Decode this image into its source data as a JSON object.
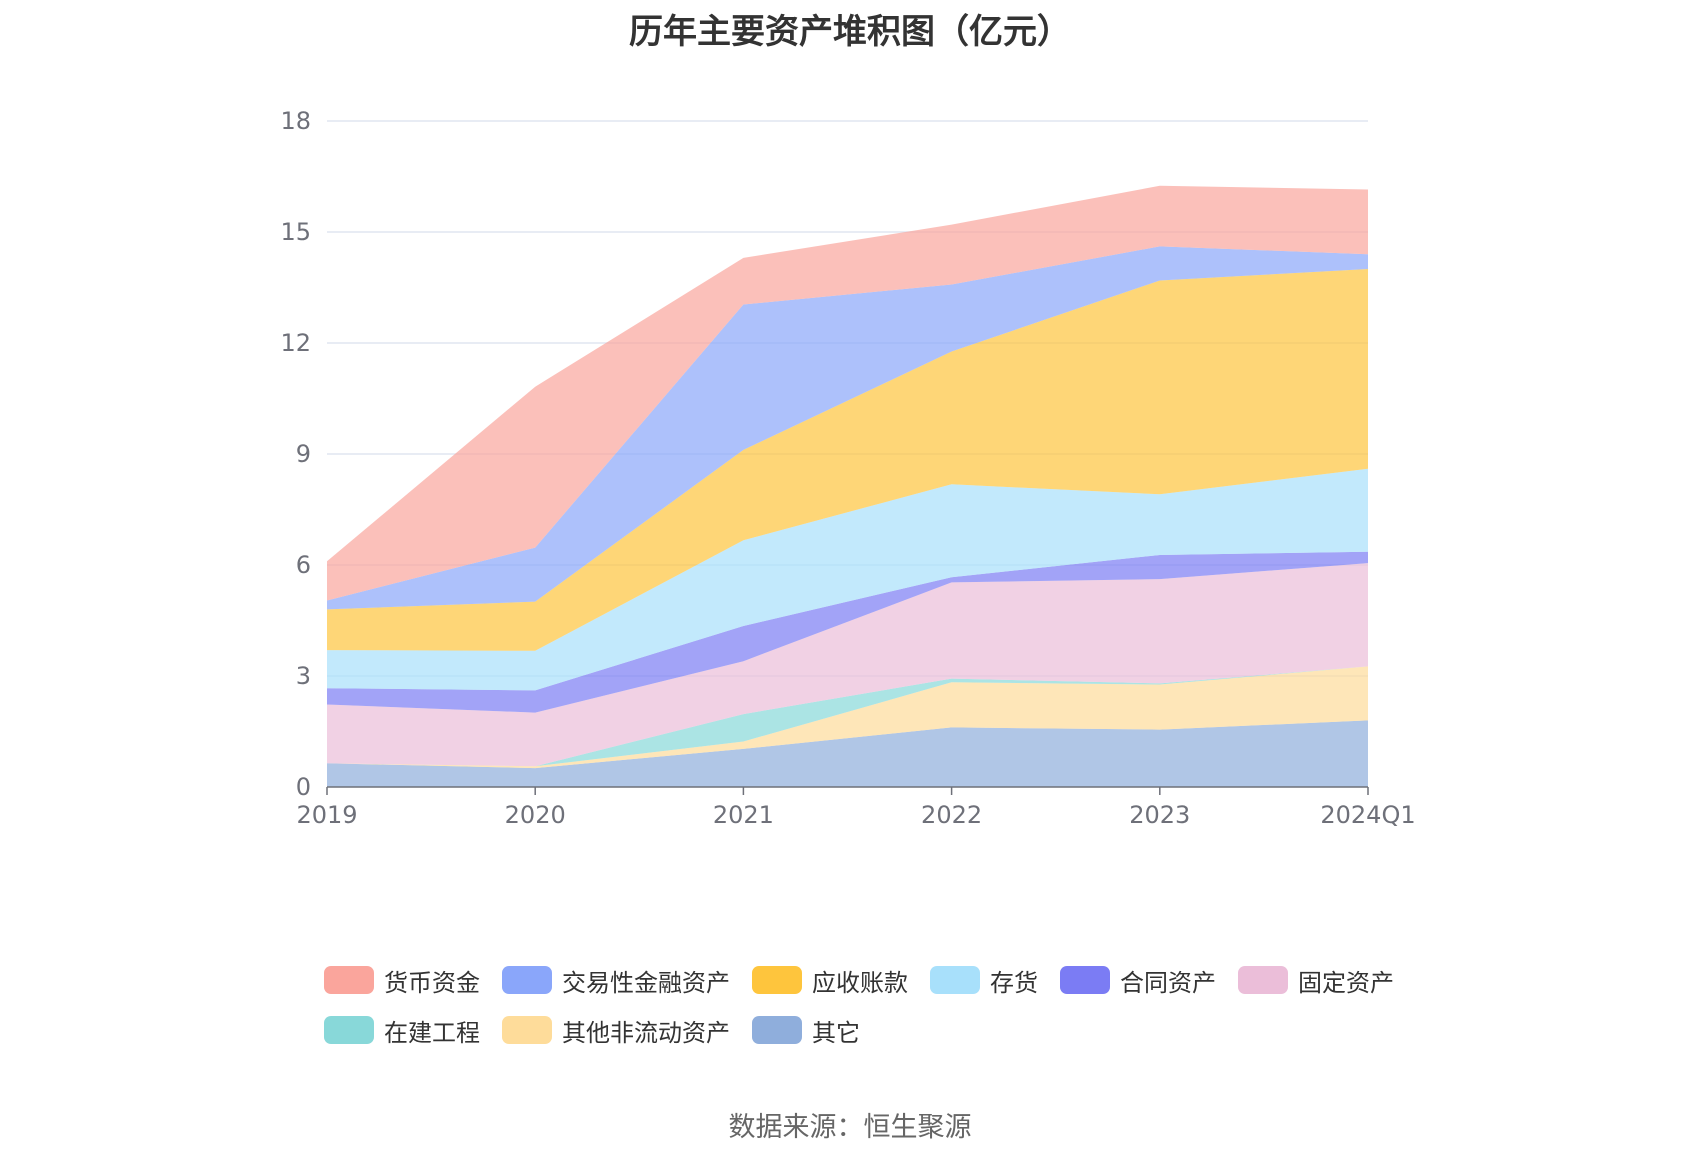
{
  "chart_data": {
    "type": "area",
    "stacked": true,
    "title": "历年主要资产堆积图（亿元）",
    "categories": [
      "2019",
      "2020",
      "2021",
      "2022",
      "2023",
      "2024Q1"
    ],
    "ylim": [
      0,
      18
    ],
    "yticks": [
      0,
      3,
      6,
      9,
      12,
      15,
      18
    ],
    "grid": true,
    "legend_position": "bottom",
    "series": [
      {
        "name": "其它",
        "color": "#8faedc",
        "values": [
          0.64,
          0.51,
          1.03,
          1.61,
          1.55,
          1.8
        ]
      },
      {
        "name": "其他非流动资产",
        "color": "#fedc9a",
        "values": [
          0.0,
          0.05,
          0.2,
          1.22,
          1.22,
          1.46
        ]
      },
      {
        "name": "在建工程",
        "color": "#88d8d9",
        "values": [
          0.0,
          0.0,
          0.74,
          0.1,
          0.03,
          0.0
        ]
      },
      {
        "name": "固定资产",
        "color": "#ebbed9",
        "values": [
          1.59,
          1.45,
          1.43,
          2.6,
          2.82,
          2.79
        ]
      },
      {
        "name": "合同资产",
        "color": "#7b7cf4",
        "values": [
          0.44,
          0.6,
          0.95,
          0.14,
          0.65,
          0.31
        ]
      },
      {
        "name": "存货",
        "color": "#a8e0fb",
        "values": [
          1.03,
          1.07,
          2.32,
          2.51,
          1.64,
          2.24
        ]
      },
      {
        "name": "应收账款",
        "color": "#fec53d",
        "values": [
          1.1,
          1.33,
          2.44,
          3.59,
          5.78,
          5.4
        ]
      },
      {
        "name": "交易性金融资产",
        "color": "#8aa6fa",
        "values": [
          0.24,
          1.46,
          3.93,
          1.81,
          0.92,
          0.4
        ]
      },
      {
        "name": "货币资金",
        "color": "#faa59c",
        "values": [
          1.06,
          4.35,
          1.26,
          1.62,
          1.64,
          1.75
        ]
      }
    ]
  },
  "legend": {
    "row1": [
      {
        "label": "货币资金",
        "color": "#faa59c"
      },
      {
        "label": "交易性金融资产",
        "color": "#8aa6fa"
      },
      {
        "label": "应收账款",
        "color": "#fec53d"
      },
      {
        "label": "存货",
        "color": "#a8e0fb"
      },
      {
        "label": "合同资产",
        "color": "#7b7cf4"
      },
      {
        "label": "固定资产",
        "color": "#ebbed9"
      }
    ],
    "row2": [
      {
        "label": "在建工程",
        "color": "#88d8d9"
      },
      {
        "label": "其他非流动资产",
        "color": "#fedc9a"
      },
      {
        "label": "其它",
        "color": "#8faedc"
      }
    ]
  },
  "source": "数据来源：恒生聚源"
}
